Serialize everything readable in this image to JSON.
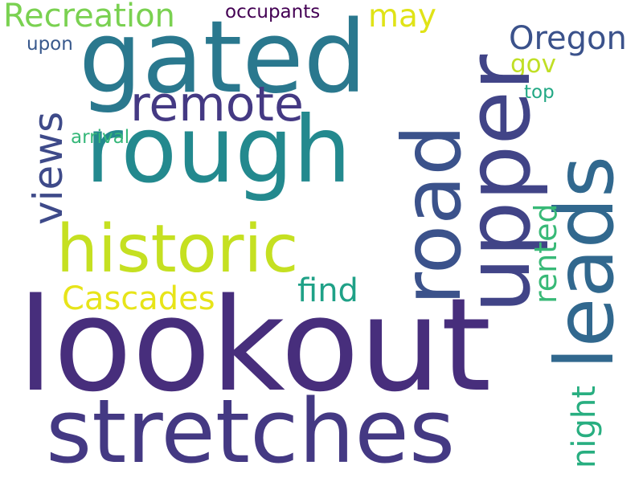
{
  "words": {
    "lookout": "lookout",
    "stretches": "stretches",
    "gated": "gated",
    "rough": "rough",
    "road": "road",
    "upper": "upper",
    "leads": "leads",
    "historic": "historic",
    "remote": "remote",
    "views": "views",
    "recreation": "Recreation",
    "occupants": "occupants",
    "may": "may",
    "oregon": "Oregon",
    "gov": "gov",
    "top": "top",
    "upon": "upon",
    "arrival": "arrival",
    "cascades": "Cascades",
    "find": "find",
    "rented": "rented",
    "night": "night"
  },
  "palette": {
    "background": "#ffffff",
    "dark_purple": "#472e7c",
    "teal": "#2a788e",
    "green": "#35b779",
    "yellow": "#e0e317"
  }
}
